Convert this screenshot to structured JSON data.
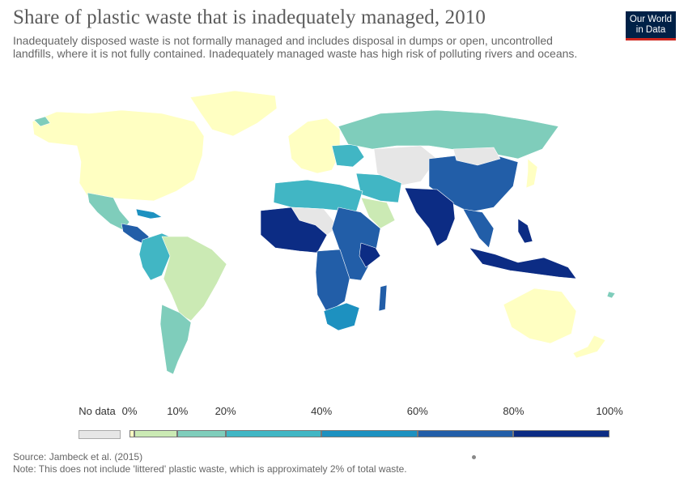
{
  "header": {
    "title": "Share of plastic waste that is inadequately managed, 2010",
    "subtitle": "Inadequately disposed waste is not formally managed and includes disposal in dumps or open, uncontrolled landfills, where it is not fully contained. Inadequately managed waste has high risk of polluting rivers and oceans."
  },
  "logo": {
    "line1": "Our World",
    "line2": "in Data",
    "bg": "#002147",
    "accent": "#ce261e"
  },
  "legend": {
    "no_data_label": "No data",
    "no_data_color": "#e6e6e6",
    "bins": [
      {
        "label": "0%",
        "from": 0,
        "to": 1,
        "color": "#ffffc2"
      },
      {
        "label": "10%",
        "from": 1,
        "to": 10,
        "color": "#cbeab4"
      },
      {
        "label": "20%",
        "from": 10,
        "to": 20,
        "color": "#7fcdbb"
      },
      {
        "label": "40%",
        "from": 20,
        "to": 40,
        "color": "#41b6c4"
      },
      {
        "label": "60%",
        "from": 40,
        "to": 60,
        "color": "#1d91c0"
      },
      {
        "label": "80%",
        "from": 60,
        "to": 80,
        "color": "#225ea8"
      },
      {
        "label": "100%",
        "from": 80,
        "to": 100,
        "color": "#0c2c84"
      }
    ]
  },
  "footer": {
    "source": "Source: Jambeck et al. (2015)",
    "note": "Note: This does not include 'littered' plastic waste, which is approximately 2% of total waste."
  }
}
